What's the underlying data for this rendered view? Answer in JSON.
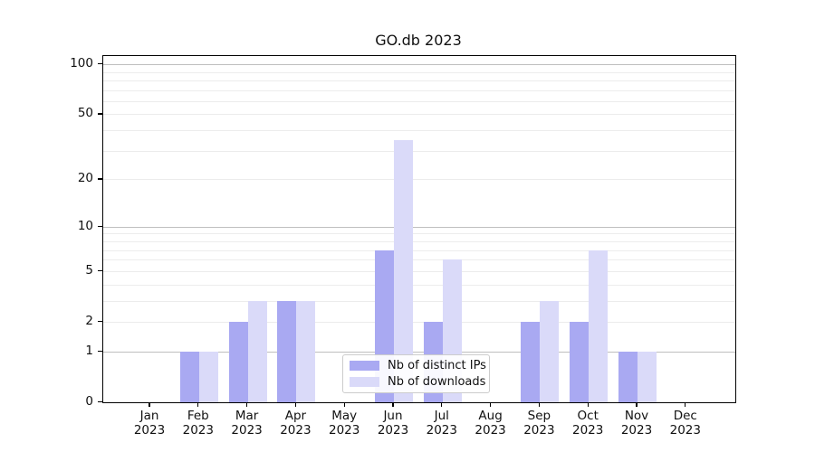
{
  "chart_data": {
    "type": "bar",
    "title": "GO.db 2023",
    "months": [
      "Jan",
      "Feb",
      "Mar",
      "Apr",
      "May",
      "Jun",
      "Jul",
      "Aug",
      "Sep",
      "Oct",
      "Nov",
      "Dec"
    ],
    "year": "2023",
    "series": [
      {
        "key": "distinct-ips",
        "name": "Nb of distinct IPs",
        "color": "#a9a9f2",
        "values": [
          0,
          1,
          2,
          3,
          0,
          7,
          2,
          0,
          2,
          2,
          1,
          0
        ]
      },
      {
        "key": "downloads",
        "name": "Nb of downloads",
        "color": "#dadaf9",
        "values": [
          0,
          1,
          3,
          3,
          0,
          35,
          6,
          0,
          3,
          7,
          1,
          0
        ]
      }
    ],
    "yscale": "log1p",
    "ylim": [
      0,
      112
    ],
    "yticks": [
      0,
      1,
      2,
      5,
      10,
      20,
      50,
      100
    ],
    "grid": {
      "major": [
        1,
        10,
        100
      ],
      "minor": [
        2,
        3,
        4,
        5,
        6,
        7,
        8,
        9,
        20,
        30,
        40,
        50,
        60,
        70,
        80,
        90
      ],
      "major_color": "#bfbfbf",
      "minor_color": "#ececec"
    },
    "legend_position": "inside-bottom-center"
  }
}
